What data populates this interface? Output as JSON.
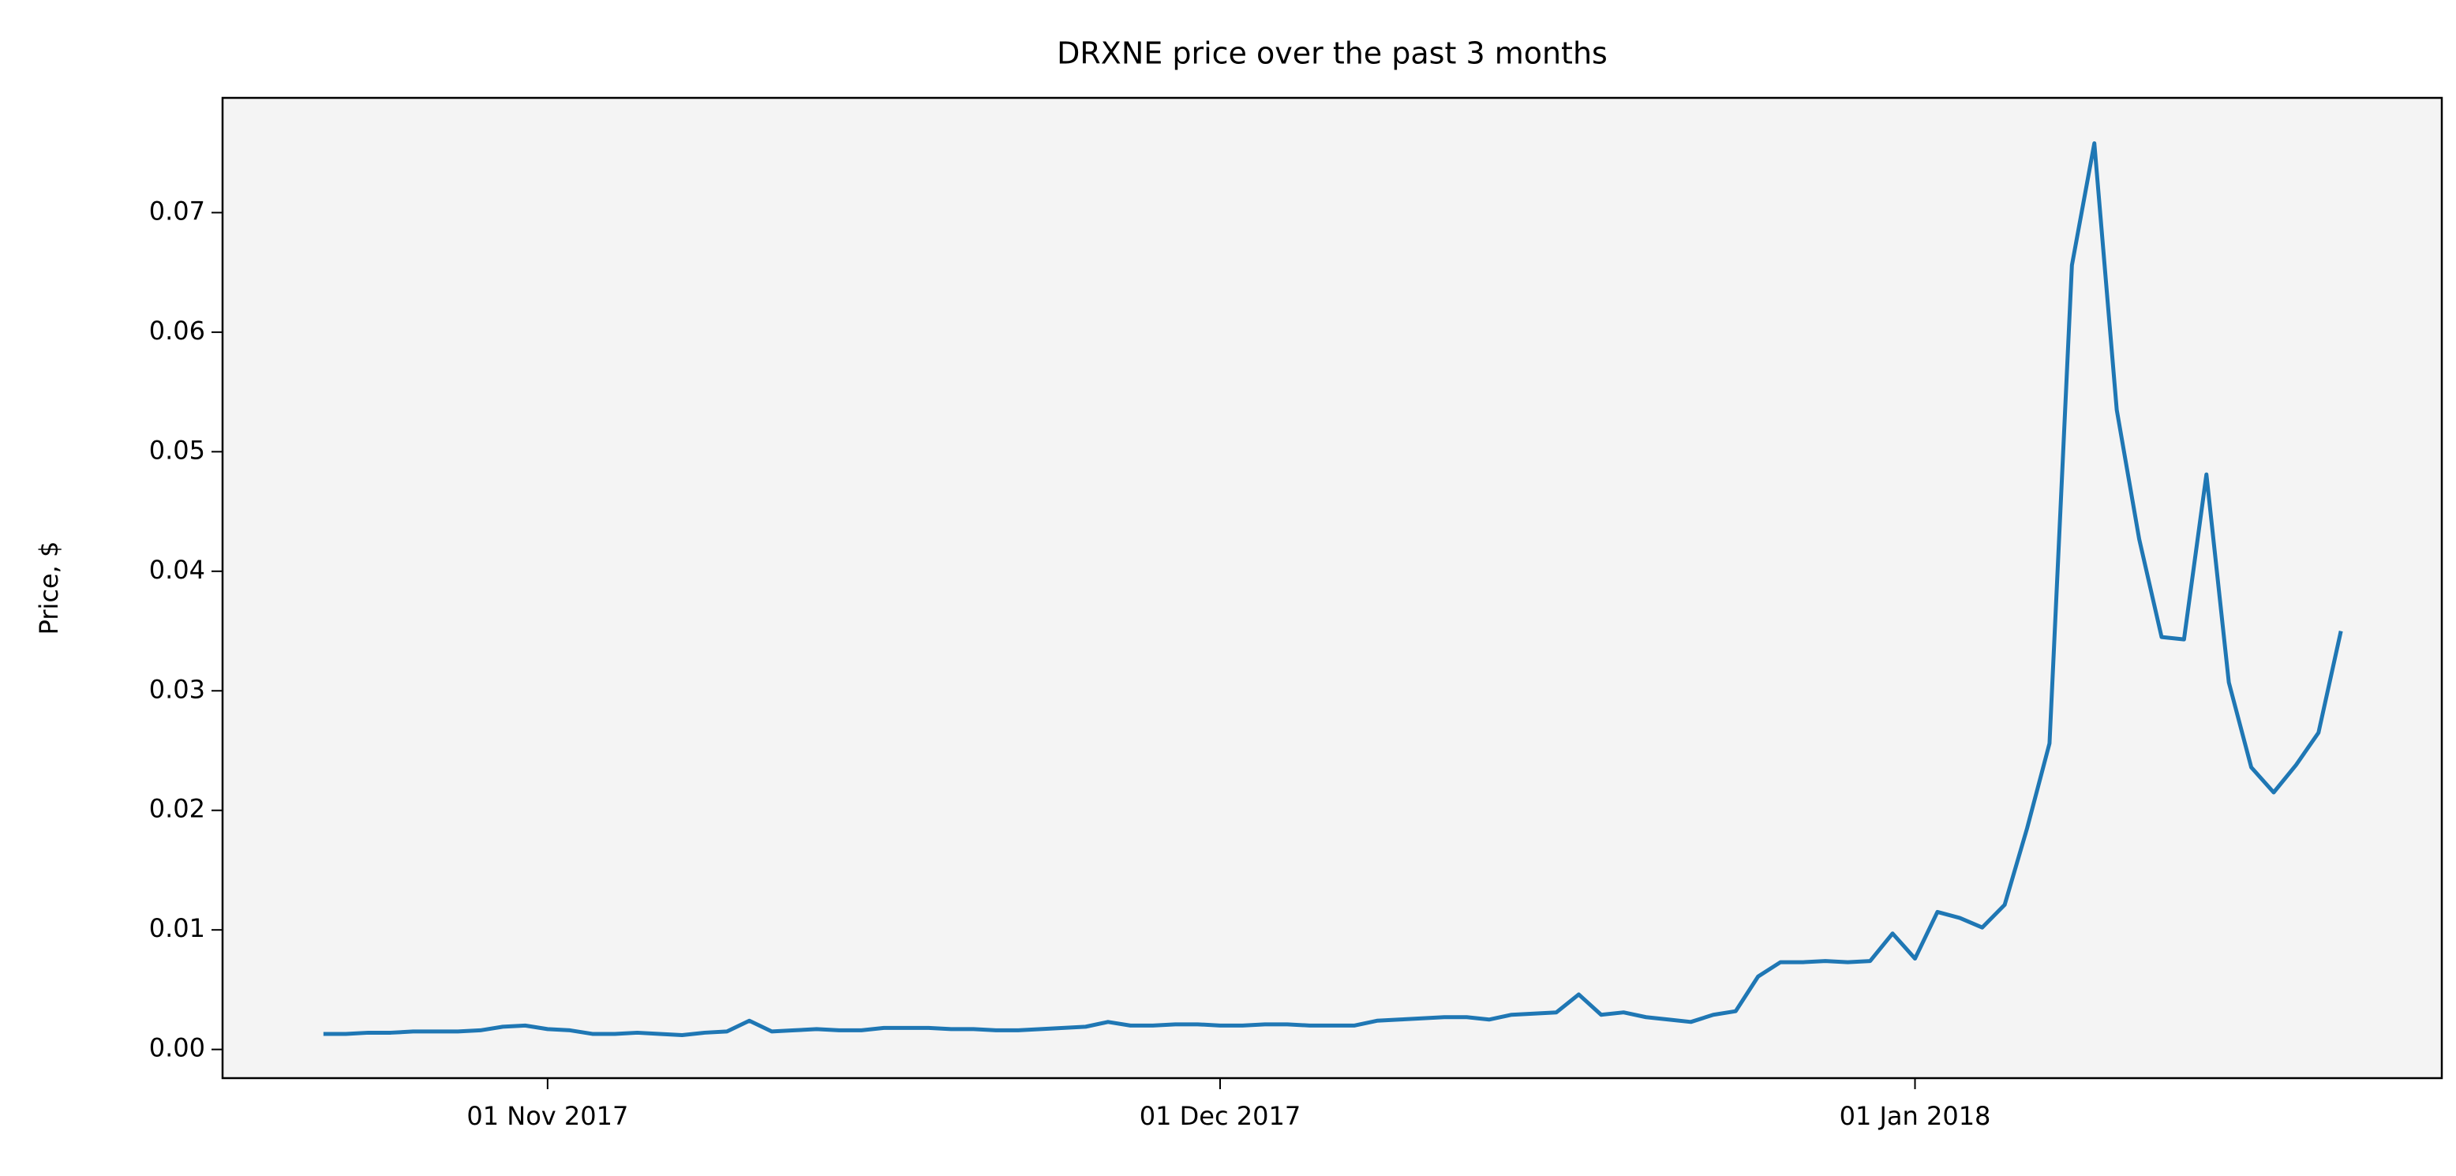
{
  "chart_data": {
    "type": "line",
    "title": "DRXNE price over the past 3 months",
    "y_label": "Price, $",
    "x": [
      "2017-10-22",
      "2017-10-23",
      "2017-10-24",
      "2017-10-25",
      "2017-10-26",
      "2017-10-27",
      "2017-10-28",
      "2017-10-29",
      "2017-10-30",
      "2017-10-31",
      "2017-11-01",
      "2017-11-02",
      "2017-11-03",
      "2017-11-04",
      "2017-11-05",
      "2017-11-06",
      "2017-11-07",
      "2017-11-08",
      "2017-11-09",
      "2017-11-10",
      "2017-11-11",
      "2017-11-12",
      "2017-11-13",
      "2017-11-14",
      "2017-11-15",
      "2017-11-16",
      "2017-11-17",
      "2017-11-18",
      "2017-11-19",
      "2017-11-20",
      "2017-11-21",
      "2017-11-22",
      "2017-11-23",
      "2017-11-24",
      "2017-11-25",
      "2017-11-26",
      "2017-11-27",
      "2017-11-28",
      "2017-11-29",
      "2017-11-30",
      "2017-12-01",
      "2017-12-02",
      "2017-12-03",
      "2017-12-04",
      "2017-12-05",
      "2017-12-06",
      "2017-12-07",
      "2017-12-08",
      "2017-12-09",
      "2017-12-10",
      "2017-12-11",
      "2017-12-12",
      "2017-12-13",
      "2017-12-14",
      "2017-12-15",
      "2017-12-16",
      "2017-12-17",
      "2017-12-18",
      "2017-12-19",
      "2017-12-20",
      "2017-12-21",
      "2017-12-22",
      "2017-12-23",
      "2017-12-24",
      "2017-12-25",
      "2017-12-26",
      "2017-12-27",
      "2017-12-28",
      "2017-12-29",
      "2017-12-30",
      "2017-12-31",
      "2018-01-01",
      "2018-01-02",
      "2018-01-03",
      "2018-01-04",
      "2018-01-05",
      "2018-01-06",
      "2018-01-07",
      "2018-01-08",
      "2018-01-09",
      "2018-01-10",
      "2018-01-11",
      "2018-01-12",
      "2018-01-13",
      "2018-01-14",
      "2018-01-15",
      "2018-01-16",
      "2018-01-17",
      "2018-01-18",
      "2018-01-19",
      "2018-01-20"
    ],
    "values": [
      0.0013,
      0.0013,
      0.0014,
      0.0014,
      0.0015,
      0.0015,
      0.0015,
      0.0016,
      0.0019,
      0.002,
      0.0017,
      0.0016,
      0.0013,
      0.0013,
      0.0014,
      0.0013,
      0.0012,
      0.0014,
      0.0015,
      0.0024,
      0.0015,
      0.0016,
      0.0017,
      0.0016,
      0.0016,
      0.0018,
      0.0018,
      0.0018,
      0.0017,
      0.0017,
      0.0016,
      0.0016,
      0.0017,
      0.0018,
      0.0019,
      0.0023,
      0.002,
      0.002,
      0.0021,
      0.0021,
      0.002,
      0.002,
      0.0021,
      0.0021,
      0.002,
      0.002,
      0.002,
      0.0024,
      0.0025,
      0.0026,
      0.0027,
      0.0027,
      0.0025,
      0.0029,
      0.003,
      0.0031,
      0.0046,
      0.0029,
      0.0031,
      0.0027,
      0.0025,
      0.0023,
      0.0029,
      0.0032,
      0.0061,
      0.0073,
      0.0073,
      0.0074,
      0.0073,
      0.0074,
      0.0097,
      0.0076,
      0.0115,
      0.011,
      0.0102,
      0.0121,
      0.0185,
      0.0256,
      0.0656,
      0.0758,
      0.0535,
      0.0427,
      0.0345,
      0.0343,
      0.0481,
      0.0307,
      0.0236,
      0.0215,
      0.0238,
      0.0265,
      0.035
    ],
    "color": "#1f77b4",
    "background": "#f4f4f4",
    "xlim": [
      "2017-10-17T12:00:00Z",
      "2018-01-24T12:00:00Z"
    ],
    "xticks": [
      {
        "value": "2017-11-01",
        "label": "01 Nov 2017"
      },
      {
        "value": "2017-12-01",
        "label": "01 Dec 2017"
      },
      {
        "value": "2018-01-01",
        "label": "01 Jan 2018"
      }
    ],
    "ylim": [
      -0.0024,
      0.0796
    ],
    "yticks": [
      {
        "value": 0,
        "label": "0.00"
      },
      0.01,
      0.02,
      0.03,
      0.04,
      0.05,
      0.06,
      0.07
    ],
    "grid": false
  }
}
